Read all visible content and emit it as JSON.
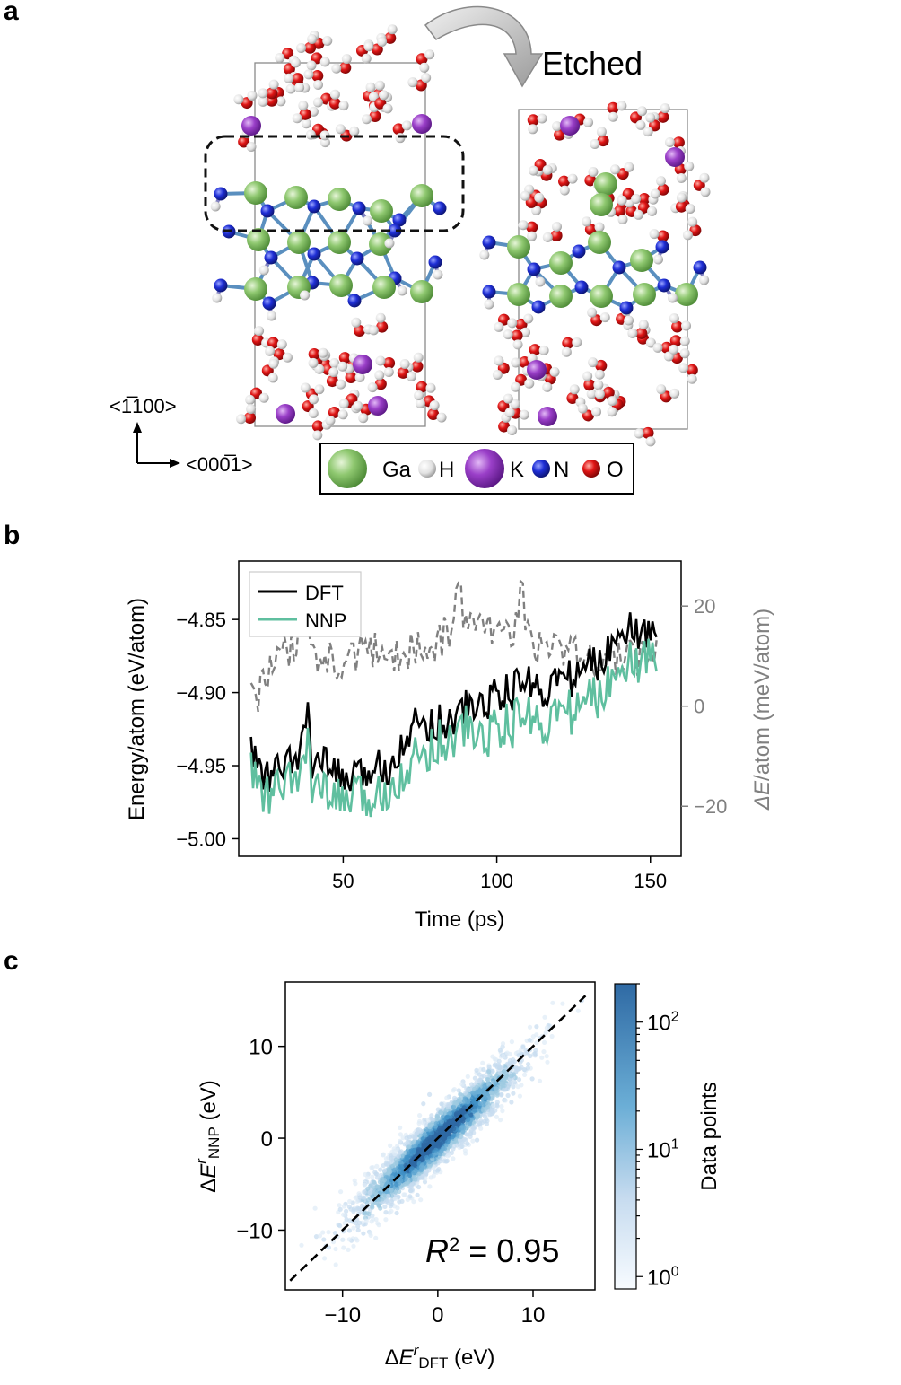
{
  "panel_a": {
    "label": "a",
    "etched_label": "Etched",
    "axis_vertical_label": "<1̅100>",
    "axis_horizontal_label": "<000̅1>",
    "legend": [
      {
        "symbol": "Ga",
        "color": "#8fc870",
        "size": "large"
      },
      {
        "symbol": "H",
        "color": "#e6e6e6",
        "size": "small"
      },
      {
        "symbol": "K",
        "color": "#9a3fc8",
        "size": "large"
      },
      {
        "symbol": "N",
        "color": "#1f2fd6",
        "size": "small"
      },
      {
        "symbol": "O",
        "color": "#e01515",
        "size": "small"
      }
    ]
  },
  "panel_b": {
    "label": "b"
  },
  "panel_c": {
    "label": "c"
  },
  "chart_data": [
    {
      "panel": "b",
      "type": "line",
      "xlabel": "Time (ps)",
      "ylabel": "Energy/atom (eV/atom)",
      "ylabel_right": "ΔE/atom (meV/atom)",
      "xlim": [
        16,
        160
      ],
      "ylim": [
        -5.012,
        -4.81
      ],
      "ylim_right": [
        -30,
        29
      ],
      "x_ticks": [
        50,
        100,
        150
      ],
      "y_ticks": [
        -5.0,
        -4.95,
        -4.9,
        -4.85
      ],
      "y_tick_labels": [
        "−5.00",
        "−4.95",
        "−4.90",
        "−4.85"
      ],
      "y_right_ticks": [
        -20,
        0,
        20
      ],
      "y_right_tick_labels": [
        "−20",
        "0",
        "20"
      ],
      "legend_position": "top-left",
      "colors": {
        "DFT": "#000000",
        "NNP": "#5fbf9f",
        "diff": "#808080"
      },
      "series": [
        {
          "name": "DFT",
          "x": [
            20,
            25,
            30,
            35,
            38,
            40,
            45,
            50,
            55,
            60,
            65,
            70,
            75,
            80,
            85,
            90,
            95,
            100,
            105,
            110,
            115,
            120,
            125,
            130,
            135,
            140,
            145,
            150,
            152
          ],
          "values": [
            -4.94,
            -4.96,
            -4.95,
            -4.95,
            -4.91,
            -4.95,
            -4.95,
            -4.96,
            -4.96,
            -4.95,
            -4.95,
            -4.93,
            -4.92,
            -4.92,
            -4.92,
            -4.91,
            -4.91,
            -4.9,
            -4.9,
            -4.89,
            -4.9,
            -4.89,
            -4.89,
            -4.88,
            -4.88,
            -4.85,
            -4.86,
            -4.86,
            -4.86
          ]
        },
        {
          "name": "NNP",
          "x": [
            20,
            25,
            30,
            35,
            38,
            40,
            45,
            50,
            55,
            60,
            65,
            70,
            75,
            80,
            85,
            90,
            95,
            100,
            105,
            110,
            115,
            120,
            125,
            130,
            135,
            140,
            145,
            150,
            152
          ],
          "values": [
            -4.95,
            -4.97,
            -4.96,
            -4.96,
            -4.93,
            -4.96,
            -4.97,
            -4.97,
            -4.97,
            -4.97,
            -4.96,
            -4.95,
            -4.94,
            -4.93,
            -4.93,
            -4.92,
            -4.93,
            -4.92,
            -4.92,
            -4.91,
            -4.92,
            -4.91,
            -4.91,
            -4.9,
            -4.9,
            -4.87,
            -4.88,
            -4.87,
            -4.88
          ]
        },
        {
          "name": "ΔE/atom",
          "axis": "right",
          "x": [
            20,
            25,
            30,
            35,
            38,
            40,
            45,
            50,
            55,
            60,
            65,
            70,
            75,
            80,
            85,
            88,
            90,
            95,
            100,
            105,
            108,
            110,
            115,
            120,
            125,
            130,
            135,
            140,
            145,
            150,
            152
          ],
          "values": [
            1,
            5,
            10,
            12,
            20,
            10,
            9,
            8,
            10,
            11,
            9,
            10,
            12,
            11,
            16,
            23,
            14,
            16,
            13,
            13,
            23,
            15,
            10,
            12,
            11,
            9,
            8,
            10,
            9,
            11,
            12
          ]
        }
      ]
    },
    {
      "panel": "c",
      "type": "heatmap",
      "description_text": "2D density of data points (hexbin/scatter)",
      "xlabel": "ΔEʳ_DFT (eV)",
      "ylabel": "ΔEʳ_NNP (eV)",
      "xlim": [
        -16,
        16.5
      ],
      "ylim": [
        -16.5,
        17
      ],
      "x_ticks": [
        -10,
        0,
        10
      ],
      "x_tick_labels": [
        "−10",
        "0",
        "10"
      ],
      "y_ticks": [
        -10,
        0,
        10
      ],
      "y_tick_labels": [
        "−10",
        "0",
        "10"
      ],
      "annotation": "R² = 0.95",
      "r_squared": 0.95,
      "fit_line": {
        "slope": 1,
        "intercept": 0,
        "style": "dashed"
      },
      "colorbar": {
        "label": "Data points",
        "scale": "log",
        "range": [
          0.8,
          200
        ],
        "ticks": [
          1,
          10,
          100
        ],
        "tick_labels": [
          "10⁰",
          "10¹",
          "10²"
        ],
        "colormap": "Blues"
      }
    }
  ]
}
